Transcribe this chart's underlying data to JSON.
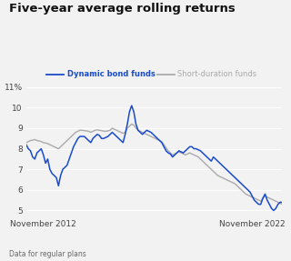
{
  "title": "Five-year average rolling returns",
  "legend_labels": [
    "Dynamic bond funds",
    "Short-duration funds"
  ],
  "legend_colors": [
    "#1a4bcc",
    "#aaaaaa"
  ],
  "footnote": "Data for regular plans",
  "ylim": [
    4.7,
    11.3
  ],
  "yticks": [
    5,
    6,
    7,
    8,
    9,
    10,
    11
  ],
  "ytick_labels": [
    "5",
    "6",
    "7",
    "8",
    "9",
    "10",
    "11%"
  ],
  "xtick_positions": [
    8,
    105
  ],
  "xtick_labels": [
    "November 2012",
    "November 2022"
  ],
  "bg_color": "#f2f2f2",
  "plot_bg": "#f2f2f2",
  "dynamic_color": "#1a4bcc",
  "short_color": "#aaaaaa",
  "dynamic_y": [
    8.2,
    8.0,
    7.9,
    7.6,
    7.5,
    7.8,
    7.9,
    8.0,
    7.7,
    7.3,
    7.5,
    7.0,
    6.8,
    6.7,
    6.6,
    6.2,
    6.7,
    7.0,
    7.1,
    7.2,
    7.5,
    7.8,
    8.1,
    8.3,
    8.5,
    8.6,
    8.6,
    8.6,
    8.5,
    8.4,
    8.3,
    8.5,
    8.6,
    8.7,
    8.65,
    8.5,
    8.5,
    8.55,
    8.6,
    8.7,
    8.8,
    8.7,
    8.6,
    8.5,
    8.4,
    8.3,
    8.7,
    9.2,
    9.8,
    10.1,
    9.8,
    9.2,
    8.9,
    8.8,
    8.7,
    8.8,
    8.9,
    8.85,
    8.8,
    8.7,
    8.6,
    8.5,
    8.4,
    8.3,
    8.1,
    7.9,
    7.8,
    7.75,
    7.6,
    7.7,
    7.8,
    7.9,
    7.85,
    7.8,
    7.9,
    8.0,
    8.1,
    8.1,
    8.0,
    8.0,
    7.95,
    7.9,
    7.8,
    7.7,
    7.6,
    7.5,
    7.4,
    7.6,
    7.5,
    7.4,
    7.3,
    7.2,
    7.1,
    7.0,
    6.9,
    6.8,
    6.7,
    6.6,
    6.5,
    6.4,
    6.3,
    6.2,
    6.1,
    6.0,
    5.9,
    5.7,
    5.5,
    5.4,
    5.3,
    5.3,
    5.6,
    5.8,
    5.5,
    5.3,
    5.1,
    5.0,
    5.1,
    5.3,
    5.4,
    5.4
  ],
  "short_y": [
    8.3,
    8.35,
    8.4,
    8.42,
    8.45,
    8.4,
    8.38,
    8.35,
    8.3,
    8.28,
    8.25,
    8.2,
    8.15,
    8.1,
    8.05,
    8.0,
    8.1,
    8.2,
    8.3,
    8.4,
    8.5,
    8.6,
    8.7,
    8.8,
    8.85,
    8.9,
    8.9,
    8.88,
    8.87,
    8.85,
    8.8,
    8.85,
    8.9,
    8.92,
    8.9,
    8.88,
    8.86,
    8.85,
    8.87,
    8.9,
    9.0,
    8.95,
    8.9,
    8.85,
    8.8,
    8.75,
    8.8,
    9.0,
    9.1,
    9.2,
    9.15,
    9.0,
    8.9,
    8.85,
    8.8,
    8.75,
    8.7,
    8.65,
    8.6,
    8.55,
    8.5,
    8.45,
    8.4,
    8.35,
    8.2,
    8.05,
    7.9,
    7.8,
    7.7,
    7.75,
    7.8,
    7.85,
    7.8,
    7.75,
    7.7,
    7.75,
    7.8,
    7.75,
    7.7,
    7.65,
    7.6,
    7.5,
    7.4,
    7.3,
    7.2,
    7.1,
    7.0,
    6.9,
    6.8,
    6.7,
    6.65,
    6.6,
    6.55,
    6.5,
    6.45,
    6.4,
    6.35,
    6.3,
    6.2,
    6.1,
    6.0,
    5.9,
    5.8,
    5.75,
    5.7,
    5.65,
    5.6,
    5.55,
    5.5,
    5.45,
    5.6,
    5.7,
    5.65,
    5.6,
    5.55,
    5.5,
    5.45,
    5.4,
    5.35,
    5.3
  ]
}
